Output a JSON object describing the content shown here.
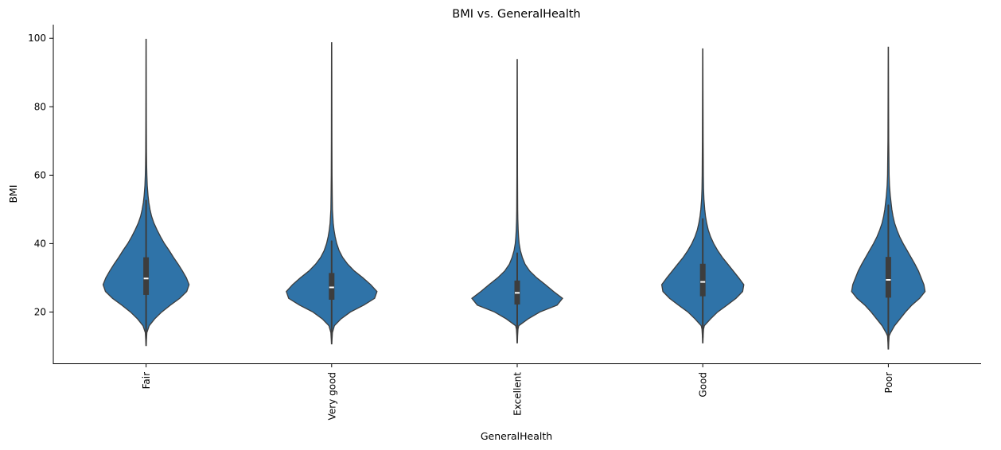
{
  "chart_data": {
    "type": "violin",
    "title": "BMI vs. GeneralHealth",
    "xlabel": "GeneralHealth",
    "ylabel": "BMI",
    "ylim": [
      5,
      104
    ],
    "yticks": [
      20,
      40,
      60,
      80,
      100
    ],
    "color": "#2f73a8",
    "edge_color": "#3d3d3d",
    "categories": [
      "Fair",
      "Very good",
      "Excellent",
      "Good",
      "Poor"
    ],
    "violins": [
      {
        "category": "Fair",
        "min": 10.2,
        "max": 99.7,
        "q1": 25.0,
        "median": 29.8,
        "q3": 36.0,
        "whisker_low": 12.2,
        "whisker_high": 52.6,
        "profile": [
          [
            10.2,
            0.5
          ],
          [
            12,
            1
          ],
          [
            14,
            2
          ],
          [
            16,
            8
          ],
          [
            18,
            22
          ],
          [
            20,
            40
          ],
          [
            22,
            62
          ],
          [
            24,
            86
          ],
          [
            26,
            104
          ],
          [
            28,
            110
          ],
          [
            30,
            103
          ],
          [
            32,
            93
          ],
          [
            34,
            82
          ],
          [
            36,
            70
          ],
          [
            38,
            59
          ],
          [
            40,
            47
          ],
          [
            42,
            37
          ],
          [
            44,
            28
          ],
          [
            46,
            20
          ],
          [
            48,
            14
          ],
          [
            50,
            10
          ],
          [
            52,
            7
          ],
          [
            54,
            5
          ],
          [
            57,
            3
          ],
          [
            60,
            2
          ],
          [
            63,
            1.4
          ],
          [
            67,
            1
          ],
          [
            75,
            0.7
          ],
          [
            85,
            0.5
          ],
          [
            99.7,
            0.3
          ]
        ]
      },
      {
        "category": "Very good",
        "min": 10.7,
        "max": 98.7,
        "q1": 23.6,
        "median": 27.2,
        "q3": 31.4,
        "whisker_low": 12.6,
        "whisker_high": 40.7,
        "profile": [
          [
            10.7,
            0.5
          ],
          [
            12,
            1
          ],
          [
            14,
            2
          ],
          [
            16,
            7
          ],
          [
            18,
            24
          ],
          [
            20,
            48
          ],
          [
            22,
            82
          ],
          [
            24,
            110
          ],
          [
            26,
            116
          ],
          [
            28,
            100
          ],
          [
            30,
            80
          ],
          [
            32,
            58
          ],
          [
            34,
            41
          ],
          [
            36,
            28
          ],
          [
            38,
            19
          ],
          [
            40,
            13
          ],
          [
            42,
            9
          ],
          [
            44,
            6
          ],
          [
            46,
            4
          ],
          [
            48,
            3
          ],
          [
            50,
            2
          ],
          [
            54,
            1.5
          ],
          [
            60,
            1
          ],
          [
            70,
            0.7
          ],
          [
            85,
            0.5
          ],
          [
            98.7,
            0.3
          ]
        ]
      },
      {
        "category": "Excellent",
        "min": 11.0,
        "max": 93.8,
        "q1": 22.2,
        "median": 25.6,
        "q3": 29.2,
        "whisker_low": 12.6,
        "whisker_high": 37.2,
        "profile": [
          [
            11.0,
            0.5
          ],
          [
            13,
            1
          ],
          [
            15,
            2
          ],
          [
            16,
            4
          ],
          [
            18,
            28
          ],
          [
            20,
            58
          ],
          [
            22,
            102
          ],
          [
            24,
            116
          ],
          [
            26,
            93
          ],
          [
            28,
            72
          ],
          [
            30,
            50
          ],
          [
            32,
            32
          ],
          [
            34,
            20
          ],
          [
            36,
            13
          ],
          [
            38,
            8
          ],
          [
            40,
            5
          ],
          [
            42,
            3.5
          ],
          [
            44,
            2.5
          ],
          [
            47,
            1.6
          ],
          [
            50,
            1.2
          ],
          [
            60,
            0.8
          ],
          [
            75,
            0.6
          ],
          [
            93.8,
            0.3
          ]
        ]
      },
      {
        "category": "Good",
        "min": 11.0,
        "max": 96.9,
        "q1": 24.6,
        "median": 28.8,
        "q3": 34.1,
        "whisker_low": 12.6,
        "whisker_high": 47.2,
        "profile": [
          [
            11.0,
            0.5
          ],
          [
            13,
            1
          ],
          [
            15,
            2
          ],
          [
            16,
            4
          ],
          [
            18,
            20
          ],
          [
            20,
            38
          ],
          [
            22,
            62
          ],
          [
            24,
            85
          ],
          [
            26,
            102
          ],
          [
            28,
            105
          ],
          [
            30,
            92
          ],
          [
            32,
            78
          ],
          [
            34,
            64
          ],
          [
            36,
            50
          ],
          [
            38,
            38
          ],
          [
            40,
            28
          ],
          [
            42,
            20
          ],
          [
            44,
            14
          ],
          [
            46,
            10
          ],
          [
            48,
            7
          ],
          [
            50,
            5
          ],
          [
            53,
            3
          ],
          [
            56,
            2
          ],
          [
            60,
            1.5
          ],
          [
            70,
            1
          ],
          [
            85,
            0.6
          ],
          [
            96.9,
            0.3
          ]
        ]
      },
      {
        "category": "Poor",
        "min": 9.2,
        "max": 97.4,
        "q1": 24.2,
        "median": 29.4,
        "q3": 36.1,
        "whisker_low": 11.6,
        "whisker_high": 51.2,
        "profile": [
          [
            9.2,
            0.5
          ],
          [
            11,
            1
          ],
          [
            13,
            2
          ],
          [
            14,
            6
          ],
          [
            16,
            16
          ],
          [
            18,
            30
          ],
          [
            20,
            44
          ],
          [
            22,
            60
          ],
          [
            24,
            80
          ],
          [
            26,
            94
          ],
          [
            28,
            91
          ],
          [
            30,
            84
          ],
          [
            32,
            77
          ],
          [
            34,
            68
          ],
          [
            36,
            58
          ],
          [
            38,
            48
          ],
          [
            40,
            38
          ],
          [
            42,
            29
          ],
          [
            44,
            22
          ],
          [
            46,
            16
          ],
          [
            48,
            12
          ],
          [
            50,
            9
          ],
          [
            52,
            7
          ],
          [
            54,
            5
          ],
          [
            57,
            3
          ],
          [
            60,
            2
          ],
          [
            65,
            1.5
          ],
          [
            70,
            1
          ],
          [
            80,
            0.7
          ],
          [
            97.4,
            0.3
          ]
        ]
      }
    ]
  }
}
